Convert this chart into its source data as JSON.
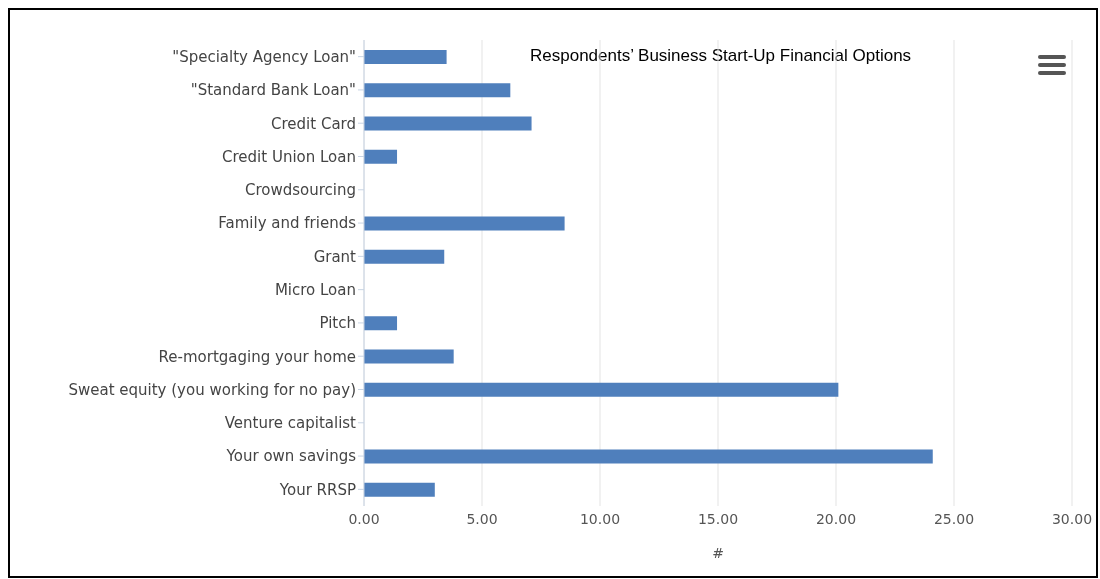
{
  "chart_data": {
    "type": "bar",
    "orientation": "horizontal",
    "title": "Respondents’ Business Start-Up Financial Options",
    "xlabel": "#",
    "categories": [
      "\"Specialty Agency Loan\"",
      "\"Standard Bank Loan\"",
      "Credit Card",
      "Credit Union Loan",
      "Crowdsourcing",
      "Family and friends",
      "Grant",
      "Micro Loan",
      "Pitch",
      "Re-mortgaging your home",
      "Sweat equity (you working for no pay)",
      "Venture capitalist",
      "Your own savings",
      "Your RRSP"
    ],
    "values": [
      3.5,
      6.2,
      7.1,
      1.4,
      0,
      8.5,
      3.4,
      0,
      1.4,
      3.8,
      20.1,
      0,
      24.1,
      3.0
    ],
    "color": "#4f7fbc",
    "xlim": [
      0,
      30
    ],
    "xticks": [
      {
        "value": 0,
        "label": "0.00"
      },
      {
        "value": 5,
        "label": "5.00"
      },
      {
        "value": 10,
        "label": "10.00"
      },
      {
        "value": 15,
        "label": "15.00"
      },
      {
        "value": 20,
        "label": "20.00"
      },
      {
        "value": 25,
        "label": "25.00"
      },
      {
        "value": 30,
        "label": "30.00"
      }
    ],
    "grid": "x",
    "legend": false
  }
}
